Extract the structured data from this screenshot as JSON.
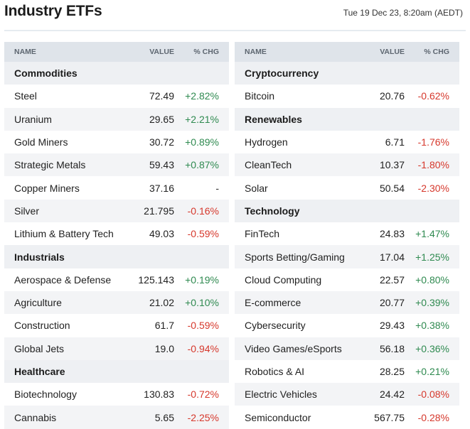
{
  "page": {
    "title": "Industry ETFs",
    "timestamp": "Tue 19 Dec 23, 8:20am (AEDT)"
  },
  "table_headers": {
    "name": "NAME",
    "value": "VALUE",
    "chg": "% CHG"
  },
  "colors": {
    "positive": "#2f8a50",
    "negative": "#d6382c",
    "header_bg": "#dfe4ea"
  },
  "left_column": [
    {
      "group": "Commodities",
      "items": [
        {
          "name": "Steel",
          "value": "72.49",
          "chg": "+2.82%"
        },
        {
          "name": "Uranium",
          "value": "29.65",
          "chg": "+2.21%"
        },
        {
          "name": "Gold Miners",
          "value": "30.72",
          "chg": "+0.89%"
        },
        {
          "name": "Strategic Metals",
          "value": "59.43",
          "chg": "+0.87%"
        },
        {
          "name": "Copper Miners",
          "value": "37.16",
          "chg": "-"
        },
        {
          "name": "Silver",
          "value": "21.795",
          "chg": "-0.16%"
        },
        {
          "name": "Lithium & Battery Tech",
          "value": "49.03",
          "chg": "-0.59%"
        }
      ]
    },
    {
      "group": "Industrials",
      "items": [
        {
          "name": "Aerospace & Defense",
          "value": "125.143",
          "chg": "+0.19%"
        },
        {
          "name": "Agriculture",
          "value": "21.02",
          "chg": "+0.10%"
        },
        {
          "name": "Construction",
          "value": "61.7",
          "chg": "-0.59%"
        },
        {
          "name": "Global Jets",
          "value": "19.0",
          "chg": "-0.94%"
        }
      ]
    },
    {
      "group": "Healthcare",
      "items": [
        {
          "name": "Biotechnology",
          "value": "130.83",
          "chg": "-0.72%"
        },
        {
          "name": "Cannabis",
          "value": "5.65",
          "chg": "-2.25%"
        }
      ]
    }
  ],
  "right_column": [
    {
      "group": "Cryptocurrency",
      "items": [
        {
          "name": "Bitcoin",
          "value": "20.76",
          "chg": "-0.62%"
        }
      ]
    },
    {
      "group": "Renewables",
      "items": [
        {
          "name": "Hydrogen",
          "value": "6.71",
          "chg": "-1.76%"
        },
        {
          "name": "CleanTech",
          "value": "10.37",
          "chg": "-1.80%"
        },
        {
          "name": "Solar",
          "value": "50.54",
          "chg": "-2.30%"
        }
      ]
    },
    {
      "group": "Technology",
      "items": [
        {
          "name": "FinTech",
          "value": "24.83",
          "chg": "+1.47%"
        },
        {
          "name": "Sports Betting/Gaming",
          "value": "17.04",
          "chg": "+1.25%"
        },
        {
          "name": "Cloud Computing",
          "value": "22.57",
          "chg": "+0.80%"
        },
        {
          "name": "E-commerce",
          "value": "20.77",
          "chg": "+0.39%"
        },
        {
          "name": "Cybersecurity",
          "value": "29.43",
          "chg": "+0.38%"
        },
        {
          "name": "Video Games/eSports",
          "value": "56.18",
          "chg": "+0.36%"
        },
        {
          "name": "Robotics & AI",
          "value": "28.25",
          "chg": "+0.21%"
        },
        {
          "name": "Electric Vehicles",
          "value": "24.42",
          "chg": "-0.08%"
        },
        {
          "name": "Semiconductor",
          "value": "567.75",
          "chg": "-0.28%"
        }
      ]
    }
  ]
}
